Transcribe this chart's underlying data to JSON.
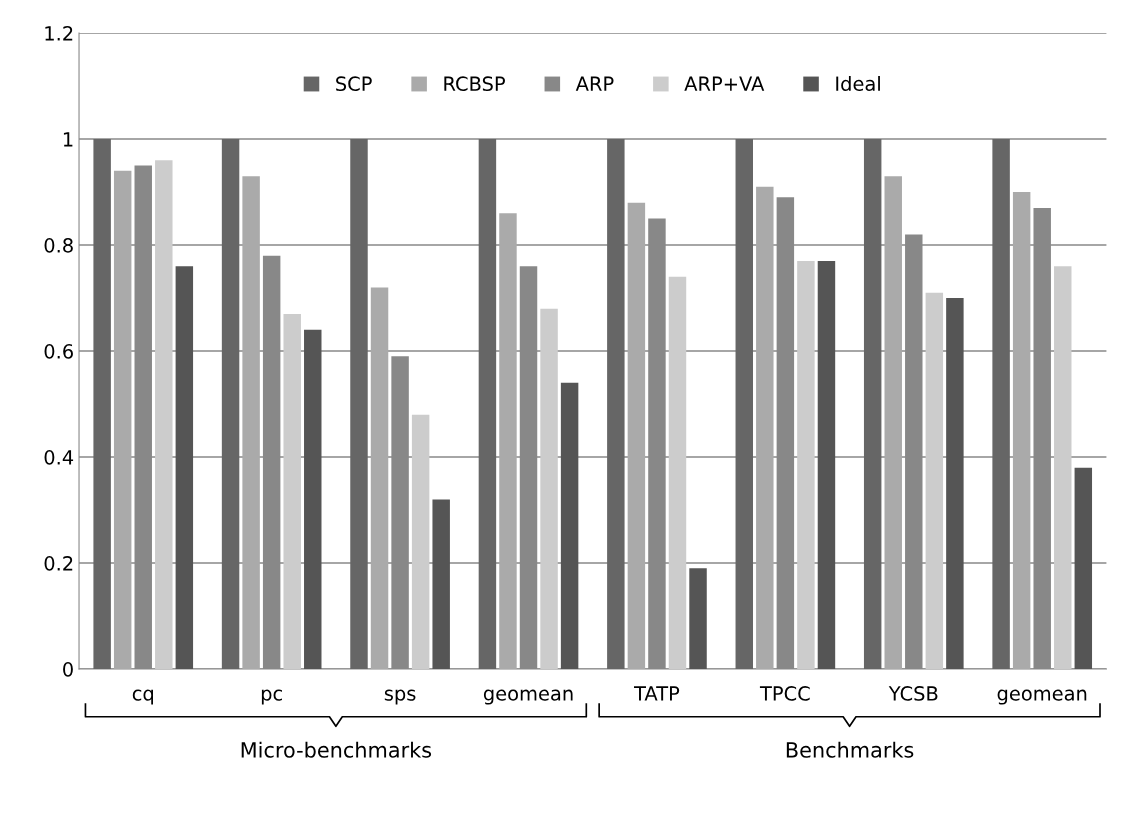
{
  "chart_data": {
    "type": "bar",
    "categories": [
      "cq",
      "pc",
      "sps",
      "geomean",
      "TATP",
      "TPCC",
      "YCSB",
      "geomean"
    ],
    "series": [
      {
        "name": "SCP",
        "color": "#666666",
        "values": [
          1,
          1,
          1,
          1,
          1,
          1,
          1,
          1
        ]
      },
      {
        "name": "RCBSP",
        "color": "#aaaaaa",
        "values": [
          0.94,
          0.93,
          0.72,
          0.86,
          0.88,
          0.91,
          0.93,
          0.9
        ]
      },
      {
        "name": "ARP",
        "color": "#888888",
        "values": [
          0.95,
          0.78,
          0.59,
          0.76,
          0.85,
          0.89,
          0.82,
          0.87
        ]
      },
      {
        "name": "ARP+VA",
        "color": "#cccccc",
        "values": [
          0.96,
          0.67,
          0.48,
          0.68,
          0.74,
          0.77,
          0.71,
          0.76
        ]
      },
      {
        "name": "Ideal",
        "color": "#555555",
        "values": [
          0.76,
          0.64,
          0.32,
          0.54,
          0.19,
          0.77,
          0.7,
          0.38
        ]
      }
    ],
    "ylim": [
      0,
      1.2
    ],
    "yticks": [
      0,
      0.2,
      0.4,
      0.6,
      0.8,
      1,
      1.2
    ],
    "grid": "y",
    "legend": "top",
    "annotations": [
      "Micro-benchmarks",
      "Benchmarks"
    ]
  }
}
